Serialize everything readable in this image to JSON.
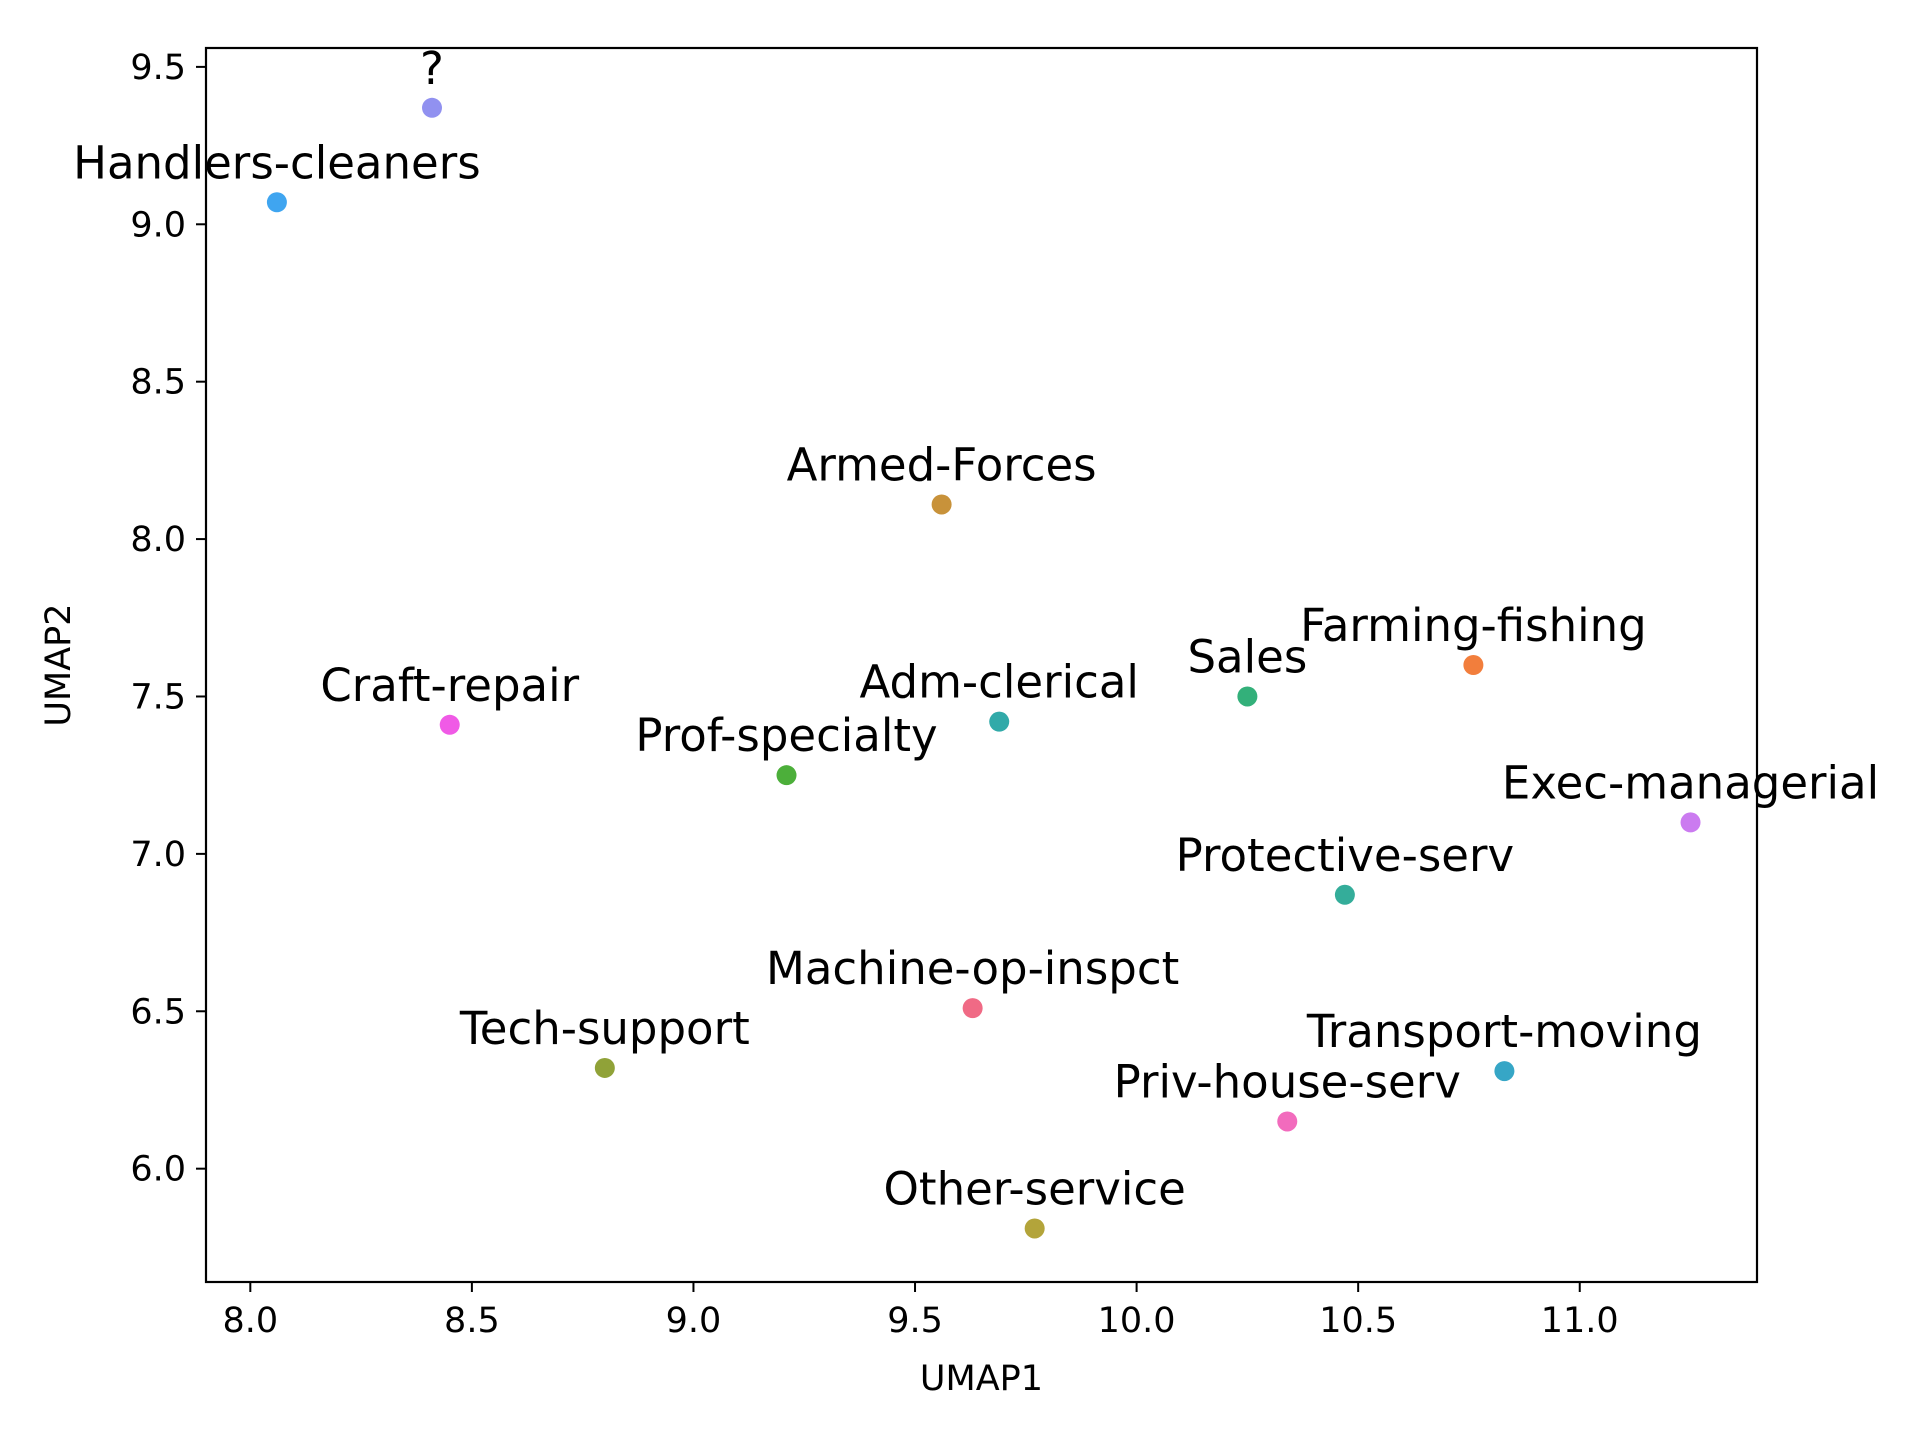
{
  "chart_data": {
    "type": "scatter",
    "title": "",
    "xlabel": "UMAP1",
    "ylabel": "UMAP2",
    "xlim": [
      7.9,
      11.4
    ],
    "ylim": [
      5.64,
      9.56
    ],
    "xticks": [
      8.0,
      8.5,
      9.0,
      9.5,
      10.0,
      10.5,
      11.0
    ],
    "xtick_labels": [
      "8.0",
      "8.5",
      "9.0",
      "9.5",
      "10.0",
      "10.5",
      "11.0"
    ],
    "yticks": [
      6.0,
      6.5,
      7.0,
      7.5,
      8.0,
      8.5,
      9.0,
      9.5
    ],
    "ytick_labels": [
      "6.0",
      "6.5",
      "7.0",
      "7.5",
      "8.0",
      "8.5",
      "9.0",
      "9.5"
    ],
    "grid": false,
    "legend": "none",
    "points": [
      {
        "label": "?",
        "x": 8.41,
        "y": 9.37,
        "color": "#9191f0"
      },
      {
        "label": "Handlers-cleaners",
        "x": 8.06,
        "y": 9.07,
        "color": "#3fa5f0"
      },
      {
        "label": "Armed-Forces",
        "x": 9.56,
        "y": 8.11,
        "color": "#c8923a"
      },
      {
        "label": "Farming-fishing",
        "x": 10.76,
        "y": 7.6,
        "color": "#f27e3c"
      },
      {
        "label": "Sales",
        "x": 10.25,
        "y": 7.5,
        "color": "#33b07a"
      },
      {
        "label": "Adm-clerical",
        "x": 9.69,
        "y": 7.42,
        "color": "#31aaa9"
      },
      {
        "label": "Craft-repair",
        "x": 8.45,
        "y": 7.41,
        "color": "#f05ae6"
      },
      {
        "label": "Prof-specialty",
        "x": 9.21,
        "y": 7.25,
        "color": "#4caf3a"
      },
      {
        "label": "Exec-managerial",
        "x": 11.25,
        "y": 7.1,
        "color": "#cb7bf0"
      },
      {
        "label": "Protective-serv",
        "x": 10.47,
        "y": 6.87,
        "color": "#34ad9a"
      },
      {
        "label": "Machine-op-inspct",
        "x": 9.63,
        "y": 6.51,
        "color": "#f06a85"
      },
      {
        "label": "Tech-support",
        "x": 8.8,
        "y": 6.32,
        "color": "#90a238"
      },
      {
        "label": "Transport-moving",
        "x": 10.83,
        "y": 6.31,
        "color": "#36a6c6"
      },
      {
        "label": "Priv-house-serv",
        "x": 10.34,
        "y": 6.15,
        "color": "#f26bbd"
      },
      {
        "label": "Other-service",
        "x": 9.77,
        "y": 5.81,
        "color": "#b3a43a"
      }
    ]
  }
}
